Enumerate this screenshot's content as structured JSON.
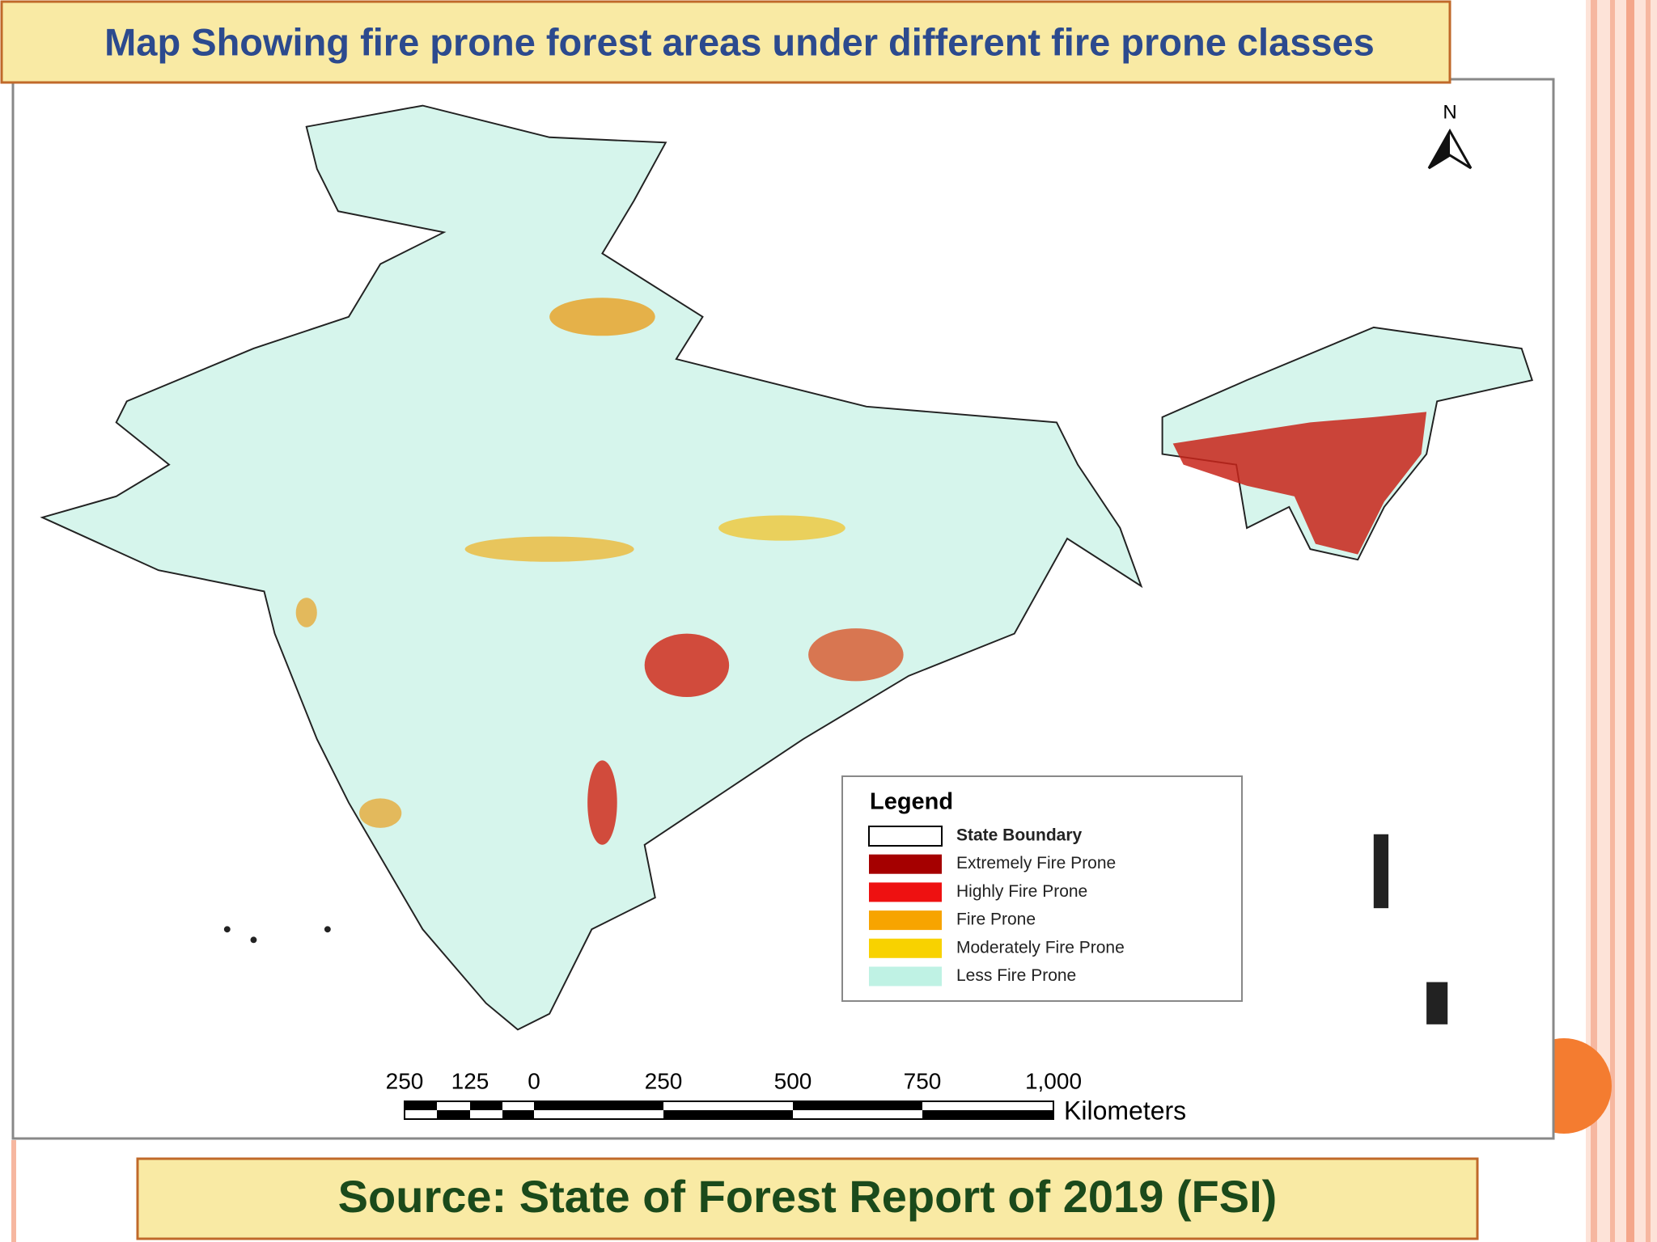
{
  "title": "Map Showing fire prone forest areas under different fire prone classes",
  "north": "N",
  "legend": {
    "title": "Legend",
    "items": [
      {
        "label": "State Boundary",
        "color": "#ffffff"
      },
      {
        "label": "Extremely Fire Prone",
        "color": "#a50000"
      },
      {
        "label": "Highly Fire Prone",
        "color": "#ee1111"
      },
      {
        "label": "Fire Prone",
        "color": "#f7a400"
      },
      {
        "label": "Moderately Fire Prone",
        "color": "#f8d200"
      },
      {
        "label": "Less Fire Prone",
        "color": "#bff2e4"
      }
    ]
  },
  "scale_bar": {
    "labels": [
      "250",
      "125",
      "0",
      "250",
      "500",
      "750",
      "1,000"
    ],
    "unit": "Kilometers"
  },
  "source": "Source: State of Forest Report of 2019 (FSI)"
}
